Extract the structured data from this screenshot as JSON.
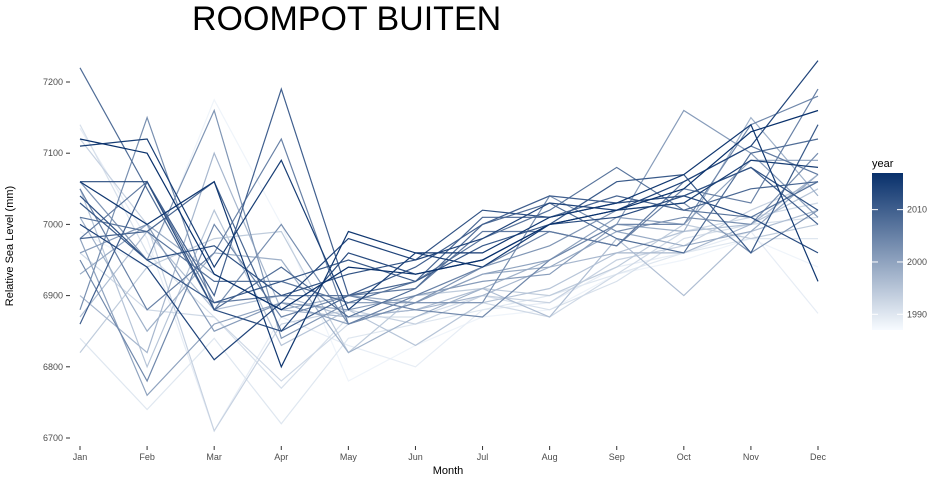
{
  "chart_data": {
    "type": "line",
    "title": "ROOMPOT BUITEN",
    "xlabel": "Month",
    "ylabel": "Relative Sea Level (mm)",
    "categories": [
      "Jan",
      "Feb",
      "Mar",
      "Apr",
      "May",
      "Jun",
      "Jul",
      "Aug",
      "Sep",
      "Oct",
      "Nov",
      "Dec"
    ],
    "ylim": [
      6690,
      7240
    ],
    "yticks": [
      6700,
      6800,
      6900,
      7000,
      7100,
      7200
    ],
    "grid": false,
    "legend": {
      "title": "year",
      "position": "right",
      "range": [
        1987,
        2017
      ],
      "ticks": [
        1990,
        2000,
        2010
      ],
      "color_low": "#f7fbff",
      "color_high": "#08306b"
    },
    "series": [
      {
        "year": 1988,
        "values": [
          6990,
          6940,
          7175,
          7000,
          6780,
          6830,
          6870,
          6880,
          6930,
          6950,
          6980,
          6940
        ]
      },
      {
        "year": 1989,
        "values": [
          7135,
          6980,
          6710,
          6870,
          6830,
          6800,
          6880,
          6890,
          6940,
          6960,
          6990,
          6875
        ]
      },
      {
        "year": 1990,
        "values": [
          6840,
          6740,
          6840,
          6720,
          6840,
          6860,
          6880,
          6900,
          6930,
          6960,
          6980,
          6980
        ]
      },
      {
        "year": 1991,
        "values": [
          7140,
          6960,
          6870,
          6770,
          6870,
          6870,
          6900,
          6880,
          6920,
          6980,
          7000,
          7010
        ]
      },
      {
        "year": 1992,
        "values": [
          6960,
          6880,
          6870,
          6780,
          6860,
          6890,
          6890,
          6870,
          6930,
          6990,
          7010,
          7030
        ]
      },
      {
        "year": 1993,
        "values": [
          7120,
          7000,
          6710,
          6860,
          6880,
          6860,
          6900,
          6890,
          6950,
          6970,
          7020,
          7060
        ]
      },
      {
        "year": 1994,
        "values": [
          6820,
          6940,
          6980,
          6990,
          6820,
          6900,
          6910,
          6900,
          6940,
          7000,
          6980,
          7000
        ]
      },
      {
        "year": 1995,
        "values": [
          7050,
          6800,
          7020,
          6830,
          6880,
          6830,
          6890,
          6910,
          6960,
          6990,
          7000,
          7050
        ]
      },
      {
        "year": 1996,
        "values": [
          6870,
          6990,
          6880,
          6900,
          6870,
          6880,
          6910,
          6870,
          6980,
          6900,
          6990,
          7020
        ]
      },
      {
        "year": 1997,
        "values": [
          6900,
          6820,
          7100,
          6880,
          6870,
          6880,
          6900,
          6940,
          6960,
          6960,
          7000,
          7070
        ]
      },
      {
        "year": 1998,
        "values": [
          7010,
          6850,
          6960,
          6950,
          6820,
          6870,
          6910,
          6950,
          7000,
          6990,
          7150,
          7040
        ]
      },
      {
        "year": 1999,
        "values": [
          6930,
          7000,
          6930,
          6880,
          6900,
          6890,
          6930,
          6940,
          6990,
          6970,
          6990,
          7070
        ]
      },
      {
        "year": 2000,
        "values": [
          6980,
          6760,
          6860,
          6890,
          6860,
          6890,
          6930,
          6950,
          7010,
          7000,
          7090,
          7090
        ]
      },
      {
        "year": 2001,
        "values": [
          6960,
          7000,
          6850,
          6890,
          6880,
          6900,
          6920,
          6930,
          7000,
          7160,
          7100,
          7010
        ]
      },
      {
        "year": 2002,
        "values": [
          7060,
          6950,
          7160,
          6840,
          6890,
          6890,
          6940,
          6970,
          7020,
          7030,
          6960,
          7020
        ]
      },
      {
        "year": 2003,
        "values": [
          6880,
          7150,
          6880,
          7000,
          6860,
          6890,
          6890,
          7040,
          6990,
          7010,
          7000,
          7100
        ]
      },
      {
        "year": 2004,
        "values": [
          6950,
          6780,
          7000,
          6870,
          6900,
          6880,
          6870,
          6950,
          7000,
          7000,
          7140,
          7180
        ]
      },
      {
        "year": 2005,
        "values": [
          7050,
          6880,
          6960,
          7120,
          6860,
          6900,
          6940,
          6990,
          6970,
          7050,
          7030,
          7190
        ]
      },
      {
        "year": 2006,
        "values": [
          6980,
          7060,
          6890,
          6900,
          6900,
          6910,
          6990,
          6990,
          6970,
          7060,
          7110,
          7070
        ]
      },
      {
        "year": 2007,
        "values": [
          7010,
          6990,
          6920,
          6920,
          6890,
          6920,
          6980,
          7020,
          7080,
          7020,
          7010,
          7060
        ]
      },
      {
        "year": 2008,
        "values": [
          7220,
          7050,
          6880,
          6940,
          6870,
          6910,
          7000,
          7030,
          6980,
          6960,
          7100,
          7120
        ]
      },
      {
        "year": 2009,
        "values": [
          6980,
          6990,
          7060,
          6850,
          6900,
          6920,
          7010,
          7010,
          7040,
          7020,
          7050,
          7060
        ]
      },
      {
        "year": 2010,
        "values": [
          6860,
          7060,
          6900,
          7190,
          6900,
          6940,
          7000,
          7040,
          7030,
          7040,
          7080,
          7000
        ]
      },
      {
        "year": 2011,
        "values": [
          7030,
          6950,
          6890,
          6920,
          6950,
          6920,
          6970,
          7000,
          7060,
          7070,
          6960,
          7140
        ]
      },
      {
        "year": 2012,
        "values": [
          7040,
          6950,
          6970,
          6900,
          6930,
          6950,
          7020,
          7010,
          7030,
          7040,
          7080,
          7020
        ]
      },
      {
        "year": 2013,
        "values": [
          7060,
          7060,
          6880,
          6850,
          6960,
          6930,
          6950,
          7000,
          7010,
          7040,
          7010,
          6960
        ]
      },
      {
        "year": 2014,
        "values": [
          7000,
          6940,
          6810,
          6890,
          6980,
          6950,
          6980,
          7030,
          7020,
          7060,
          7110,
          7230
        ]
      },
      {
        "year": 2015,
        "values": [
          7110,
          7120,
          6940,
          7090,
          6880,
          6960,
          6940,
          7000,
          7020,
          7030,
          7090,
          7080
        ]
      },
      {
        "year": 2016,
        "values": [
          7060,
          7000,
          7060,
          6800,
          6990,
          6960,
          6960,
          7010,
          7030,
          7070,
          7140,
          6920
        ]
      },
      {
        "year": 2017,
        "values": [
          7120,
          7100,
          6930,
          6880,
          6940,
          6930,
          6950,
          7000,
          7020,
          7050,
          7130,
          7160
        ]
      }
    ]
  }
}
